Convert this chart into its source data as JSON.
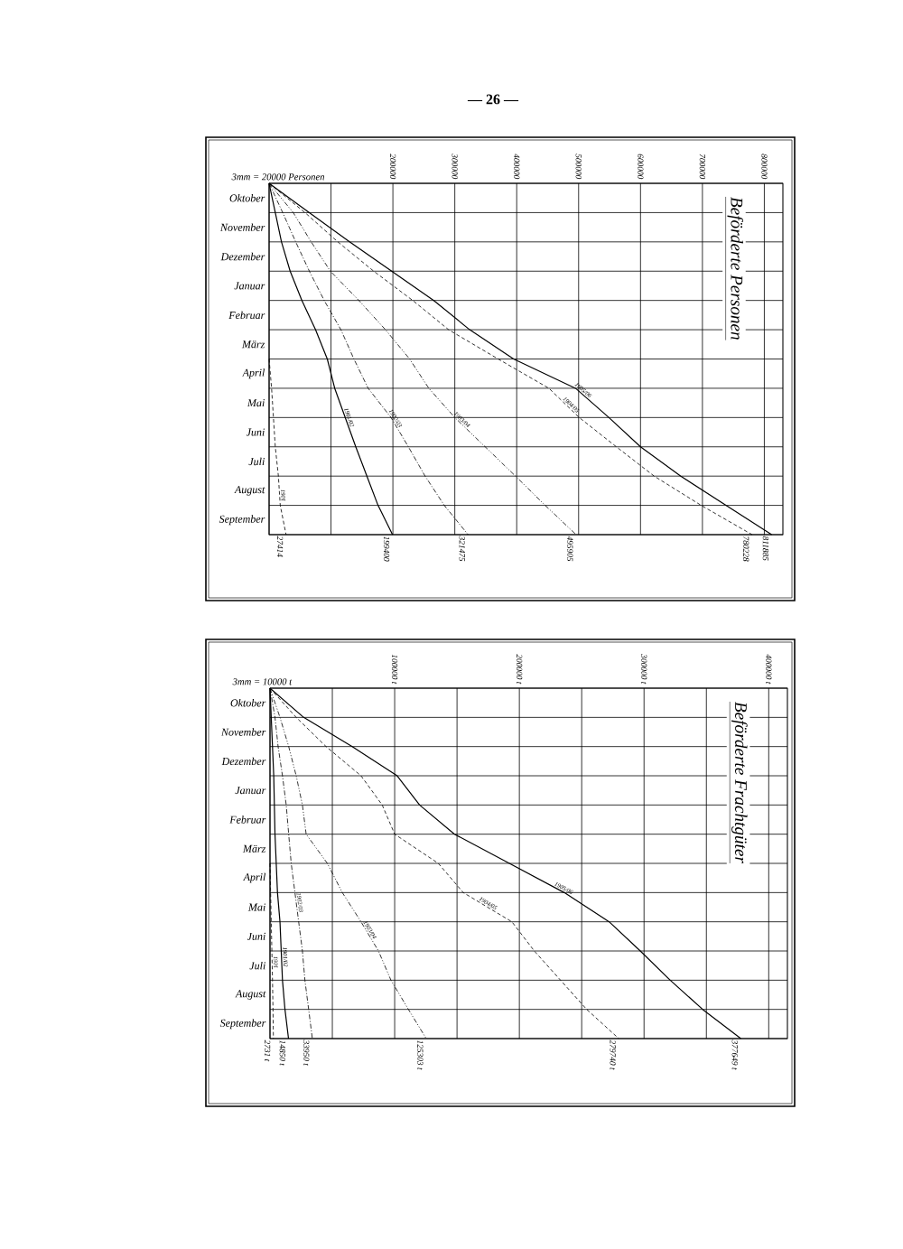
{
  "chart_data": [
    {
      "type": "line",
      "orientation": "horizontal",
      "title": "Beförderte Personen",
      "annotations": [
        "— 26 —",
        "3mm = 20000 Personen"
      ],
      "grid": true,
      "categories": [
        null,
        "Oktober",
        "November",
        "Dezember",
        "Januar",
        "Februar",
        "März",
        "April",
        "Mai",
        "Juni",
        "Juli",
        "August",
        "September"
      ],
      "xlim": [
        0,
        830000
      ],
      "xticks": [
        {
          "value": 0,
          "label": null
        },
        {
          "value": 100000,
          "label": null
        },
        200000,
        300000,
        400000,
        500000,
        600000,
        700000,
        800000
      ],
      "series": [
        {
          "name": "1901",
          "color": "#000000",
          "line_style": "dashed",
          "values": [
            null,
            null,
            null,
            null,
            null,
            null,
            0,
            4000,
            7000,
            10000,
            15000,
            18000,
            27414
          ],
          "value_labels": [
            null,
            null,
            null,
            null,
            null,
            null,
            null,
            null,
            null,
            null,
            null,
            null,
            "27414"
          ]
        },
        {
          "name": "1901/02",
          "color": "#000000",
          "line_style": "solid",
          "values": [
            0,
            10000,
            20000,
            34000,
            53000,
            75000,
            94000,
            106000,
            123000,
            140000,
            158000,
            176000,
            199400
          ],
          "value_labels": [
            null,
            null,
            null,
            null,
            null,
            null,
            null,
            null,
            null,
            null,
            null,
            null,
            "199400"
          ]
        },
        {
          "name": "1902/03",
          "color": "#000000",
          "line_style": "dashdot",
          "values": [
            0,
            22000,
            43000,
            65000,
            89000,
            116000,
            137000,
            160000,
            197000,
            225000,
            252000,
            283000,
            321475
          ],
          "value_labels": [
            null,
            null,
            null,
            null,
            null,
            null,
            null,
            null,
            null,
            null,
            null,
            null,
            "321475"
          ]
        },
        {
          "name": "1903/04",
          "color": "#000000",
          "line_style": "dashdotdot",
          "values": [
            0,
            39000,
            68000,
            99000,
            145000,
            188000,
            227000,
            258000,
            300000,
            349000,
            398000,
            446000,
            495905
          ],
          "value_labels": [
            null,
            null,
            null,
            null,
            null,
            null,
            null,
            null,
            null,
            null,
            null,
            null,
            "495905"
          ]
        },
        {
          "name": "1904/05",
          "color": "#000000",
          "line_style": "dashed",
          "values": [
            0,
            58000,
            111000,
            169000,
            232000,
            290000,
            370000,
            452000,
            501000,
            561000,
            622000,
            698000,
            780228
          ],
          "value_labels": [
            null,
            null,
            null,
            null,
            null,
            null,
            null,
            null,
            null,
            null,
            null,
            null,
            "780228"
          ]
        },
        {
          "name": "1905/06",
          "color": "#000000",
          "line_style": "solid",
          "values": [
            0,
            65000,
            130000,
            198000,
            266000,
            324000,
            395000,
            495000,
            549000,
            600000,
            665000,
            738000,
            811885
          ],
          "value_labels": [
            null,
            null,
            null,
            null,
            null,
            null,
            null,
            null,
            null,
            null,
            null,
            null,
            "811885"
          ]
        }
      ]
    },
    {
      "type": "line",
      "orientation": "horizontal",
      "title": "Beförderte Frachtgüter",
      "annotations": [
        "3mm = 10000 t"
      ],
      "grid": true,
      "categories": [
        null,
        "Oktober",
        "November",
        "Dezember",
        "Januar",
        "Februar",
        "März",
        "April",
        "Mai",
        "Juni",
        "Juli",
        "August",
        "September"
      ],
      "xlim": [
        0,
        415000
      ],
      "xticks": [
        {
          "value": 0,
          "label": null
        },
        {
          "value": 50000,
          "label": null
        },
        {
          "value": 100000,
          "label": "100000 t"
        },
        {
          "value": 150000,
          "label": null
        },
        {
          "value": 200000,
          "label": "200000 t"
        },
        {
          "value": 250000,
          "label": null
        },
        {
          "value": 300000,
          "label": "300000 t"
        },
        {
          "value": 350000,
          "label": null
        },
        {
          "value": 400000,
          "label": "400000 t"
        }
      ],
      "series": [
        {
          "name": "1901",
          "color": "#000000",
          "line_style": "dashed",
          "values": [
            null,
            null,
            null,
            null,
            null,
            null,
            0,
            500,
            1000,
            1500,
            2000,
            2400,
            2731
          ],
          "value_labels": [
            null,
            null,
            null,
            null,
            null,
            null,
            null,
            null,
            null,
            null,
            null,
            null,
            "2731 t"
          ]
        },
        {
          "name": "1901/02",
          "color": "#000000",
          "line_style": "solid",
          "values": [
            0,
            1000,
            2000,
            3000,
            3500,
            4000,
            5000,
            6000,
            8000,
            9000,
            10000,
            12000,
            14850
          ],
          "value_labels": [
            null,
            null,
            null,
            null,
            null,
            null,
            null,
            null,
            null,
            null,
            null,
            null,
            "14850 t"
          ]
        },
        {
          "name": "1902/03",
          "color": "#000000",
          "line_style": "dashdot",
          "values": [
            0,
            4000,
            6500,
            10000,
            13000,
            15000,
            17000,
            20000,
            23000,
            26000,
            28000,
            31000,
            33950
          ],
          "value_labels": [
            null,
            null,
            null,
            null,
            null,
            null,
            null,
            null,
            null,
            null,
            null,
            null,
            "33950 t"
          ]
        },
        {
          "name": "1903/04",
          "color": "#000000",
          "line_style": "dashdotdot",
          "values": [
            0,
            8000,
            15000,
            21000,
            26000,
            29000,
            46000,
            58000,
            73000,
            87000,
            97000,
            111000,
            125303
          ],
          "value_labels": [
            null,
            null,
            null,
            null,
            null,
            null,
            null,
            null,
            null,
            null,
            null,
            null,
            "125303 t"
          ]
        },
        {
          "name": "1904/05",
          "color": "#000000",
          "line_style": "dashed",
          "values": [
            0,
            21000,
            45000,
            73000,
            90000,
            100000,
            135000,
            155000,
            194000,
            212000,
            233000,
            254000,
            279740
          ],
          "value_labels": [
            null,
            null,
            null,
            null,
            null,
            null,
            null,
            null,
            null,
            null,
            null,
            null,
            "279740 t"
          ]
        },
        {
          "name": "1905/06",
          "color": "#000000",
          "line_style": "solid",
          "values": [
            0,
            27000,
            66000,
            102000,
            120000,
            148000,
            192000,
            236000,
            272000,
            297000,
            321000,
            347000,
            377649
          ],
          "value_labels": [
            null,
            null,
            null,
            null,
            null,
            null,
            null,
            null,
            null,
            null,
            null,
            null,
            "377649 t"
          ]
        }
      ]
    }
  ]
}
